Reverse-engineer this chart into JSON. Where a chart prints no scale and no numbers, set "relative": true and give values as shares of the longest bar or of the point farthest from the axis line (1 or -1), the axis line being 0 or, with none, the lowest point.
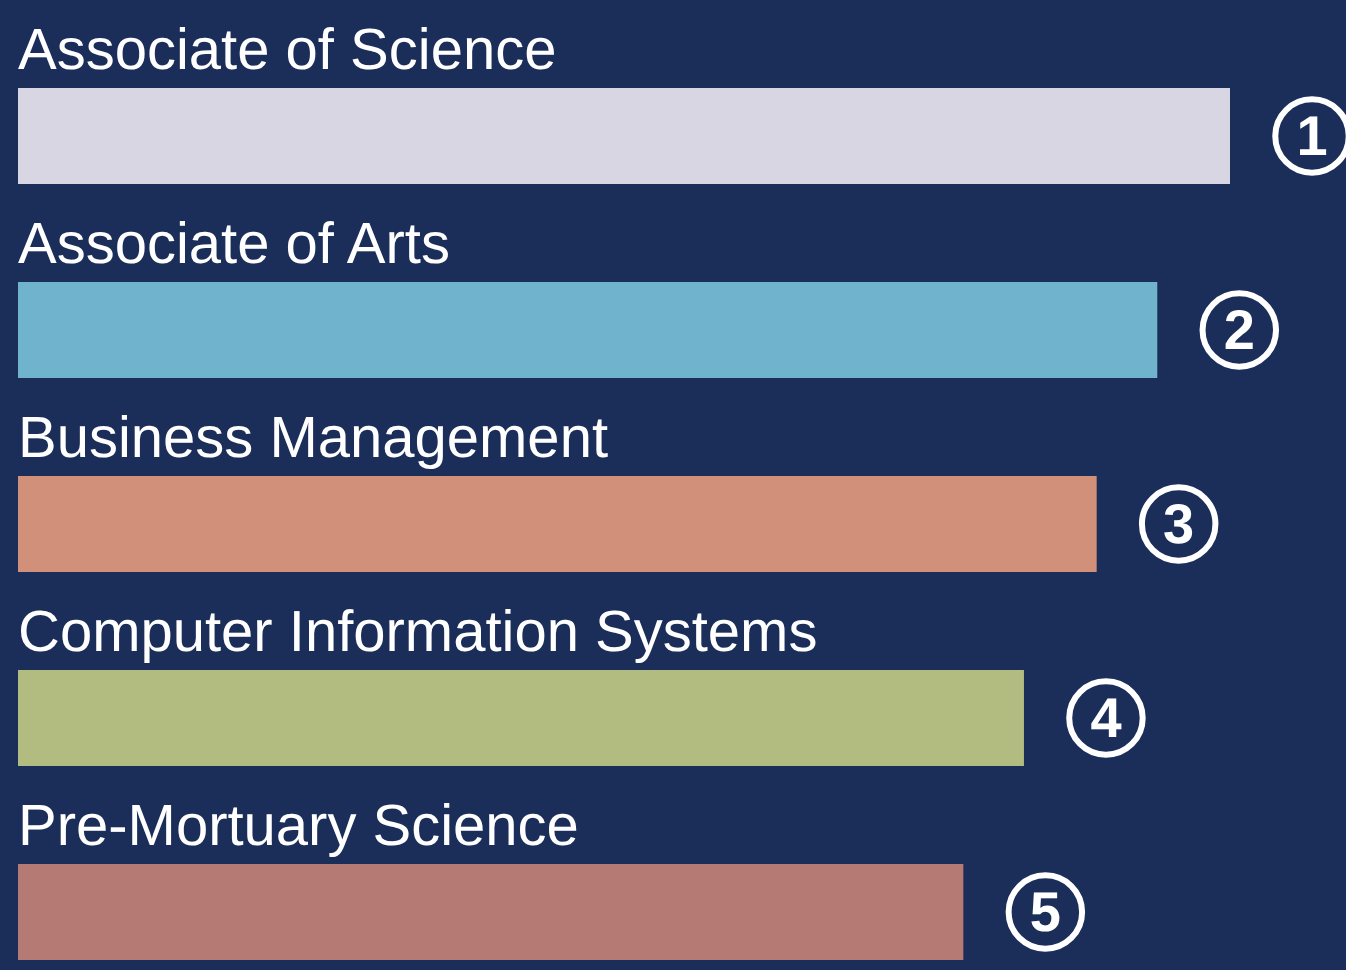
{
  "chart_data": {
    "type": "bar",
    "orientation": "horizontal",
    "relative": true,
    "categories": [
      "Associate of Science",
      "Associate of Arts",
      "Business Management",
      "Computer Information Systems",
      "Pre-Mortuary Science"
    ],
    "values": [
      1,
      0.94,
      0.89,
      0.83,
      0.78
    ],
    "colors": [
      "#d8d6e2",
      "#6fb4cc",
      "#d0907a",
      "#b2bb80",
      "#b67a74"
    ],
    "annotations": [
      {
        "text": "1",
        "x": 1,
        "y": "Associate of Science"
      },
      {
        "text": "2",
        "x": 0.94,
        "y": "Associate of Arts"
      },
      {
        "text": "3",
        "x": 0.89,
        "y": "Business Management"
      },
      {
        "text": "4",
        "x": 0.83,
        "y": "Computer Information Systems"
      },
      {
        "text": "5",
        "x": 0.78,
        "y": "Pre-Mortuary Science"
      }
    ]
  }
}
